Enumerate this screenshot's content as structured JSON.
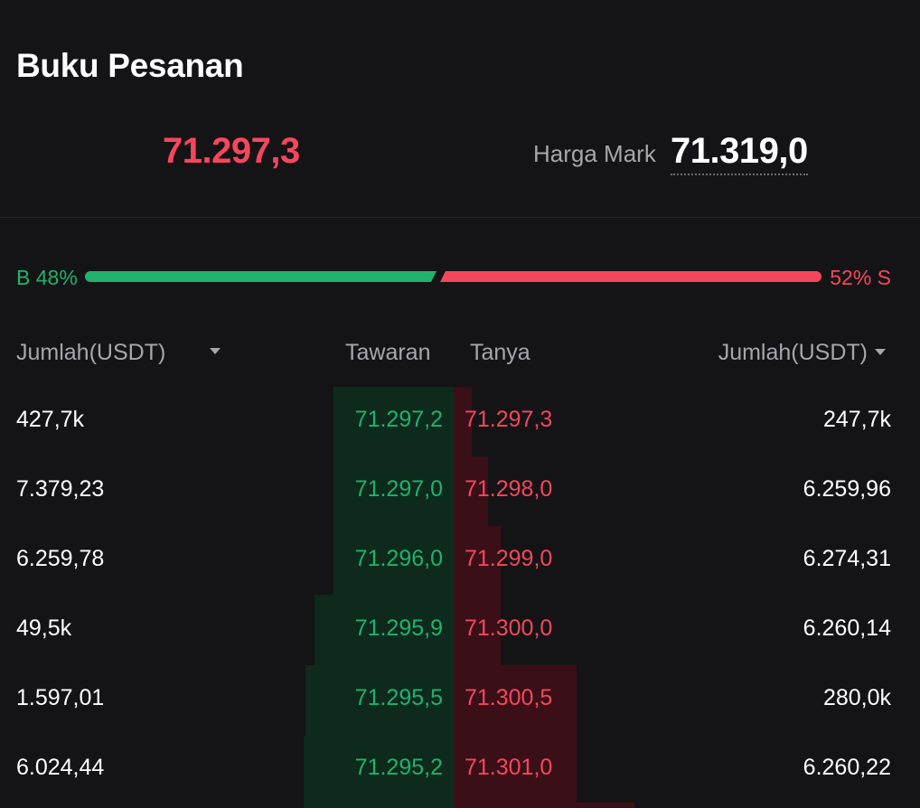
{
  "title": "Buku Pesanan",
  "last_price": "71.297,3",
  "mark": {
    "label": "Harga Mark",
    "value": "71.319,0"
  },
  "ratio": {
    "buy_label": "B 48%",
    "sell_label": "52% S",
    "buy_fraction": 0.48,
    "sell_fraction": 0.52
  },
  "headers": {
    "left_amount": "Jumlah(USDT)",
    "bid": "Tawaran",
    "ask": "Tanya",
    "right_amount": "Jumlah(USDT)"
  },
  "rows": [
    {
      "bid_amount": "427,7k",
      "bid_price": "71.297,2",
      "ask_price": "71.297,3",
      "ask_amount": "247,7k"
    },
    {
      "bid_amount": "7.379,23",
      "bid_price": "71.297,0",
      "ask_price": "71.298,0",
      "ask_amount": "6.259,96"
    },
    {
      "bid_amount": "6.259,78",
      "bid_price": "71.296,0",
      "ask_price": "71.299,0",
      "ask_amount": "6.274,31"
    },
    {
      "bid_amount": "49,5k",
      "bid_price": "71.295,9",
      "ask_price": "71.300,0",
      "ask_amount": "6.260,14"
    },
    {
      "bid_amount": "1.597,01",
      "bid_price": "71.295,5",
      "ask_price": "71.300,5",
      "ask_amount": "280,0k"
    },
    {
      "bid_amount": "6.024,44",
      "bid_price": "71.295,2",
      "ask_price": "71.301,0",
      "ask_amount": "6.260,22"
    }
  ],
  "colors": {
    "buy": "#20b26c",
    "sell": "#f6465d",
    "buy_depth": "#0d2a1d",
    "sell_depth": "#3a0f17",
    "background": "#141416"
  }
}
